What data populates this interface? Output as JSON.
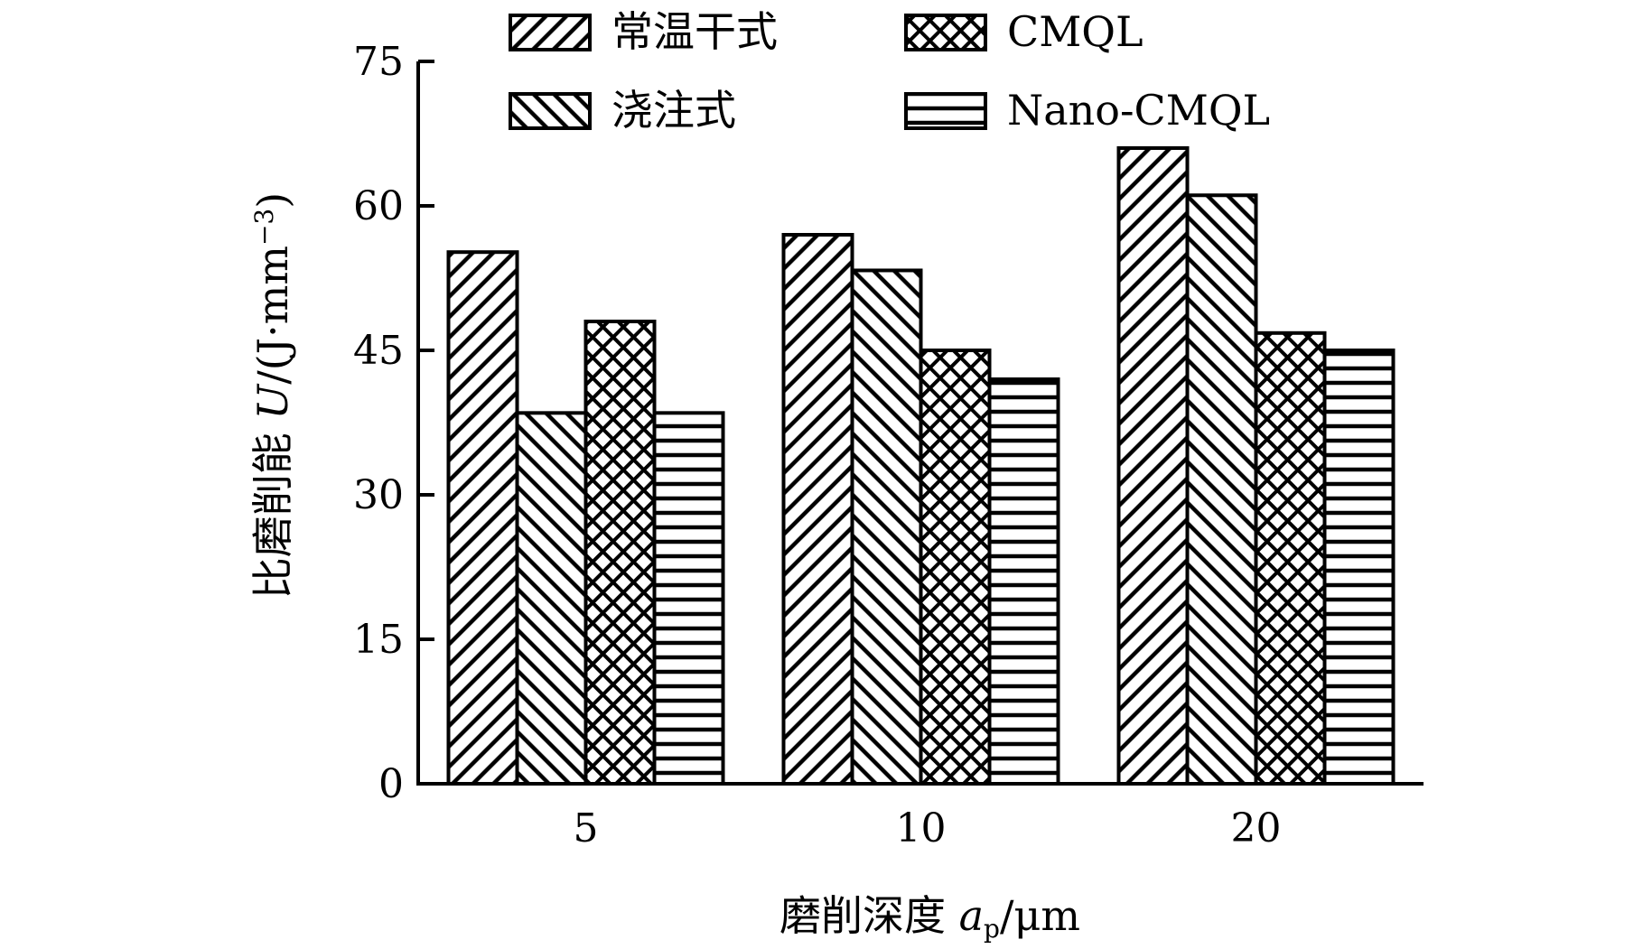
{
  "chart_data": {
    "type": "bar",
    "categories": [
      "5",
      "10",
      "20"
    ],
    "series": [
      {
        "name": "常温干式",
        "values": [
          55.2,
          57.0,
          66.0
        ],
        "pattern": "diag-right"
      },
      {
        "name": "浇注式",
        "values": [
          38.5,
          53.3,
          61.1
        ],
        "pattern": "diag-left"
      },
      {
        "name": "CMQL",
        "values": [
          48.0,
          45.0,
          46.8
        ],
        "pattern": "cross"
      },
      {
        "name": "Nano-CMQL",
        "values": [
          38.5,
          42.0,
          45.0
        ],
        "pattern": "horizontal"
      }
    ],
    "ylim": [
      0,
      75
    ],
    "yticks": [
      0,
      15,
      30,
      45,
      60,
      75
    ],
    "xlabel": "磨削深度 a_p/μm",
    "ylabel": "比磨削能 U/(J·mm⁻³)",
    "legend_position": "top",
    "grid": false,
    "colors": {
      "stroke": "#000000",
      "fill": "#ffffff"
    }
  },
  "labels": {
    "xlabel_main": "磨削深度 ",
    "xlabel_var": "a",
    "xlabel_sub": "p",
    "xlabel_unit": "/μm",
    "ylabel_main": "比磨削能 ",
    "ylabel_var": "U",
    "ylabel_unit": "/(J·mm",
    "ylabel_exp": "−3",
    "ylabel_close": ")"
  }
}
